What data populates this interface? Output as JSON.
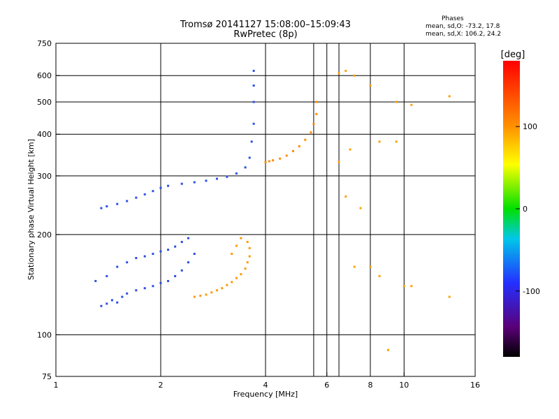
{
  "header": {
    "title_line1": "Tromsø 20141127 15:08:00–15:09:43",
    "title_line2": "RwPretec (8p)",
    "phases_title": "Phases",
    "phases_o": "mean, sd,O: -73.2, 17.8",
    "phases_x": "mean, sd,X: 106.2, 24.2"
  },
  "chart_data": {
    "type": "scatter",
    "xlabel": "Frequency [MHz]",
    "ylabel": "Stationary phase Virtual Height [km]",
    "x_scale": "log",
    "y_scale": "log",
    "xlim": [
      1,
      16
    ],
    "ylim": [
      75,
      750
    ],
    "x_ticks": [
      1,
      2,
      4,
      6,
      8,
      10,
      16
    ],
    "y_ticks": [
      75,
      100,
      200,
      300,
      400,
      500,
      600,
      750
    ],
    "x_grid": [
      2,
      4,
      5.5,
      6,
      6.5,
      8,
      10
    ],
    "y_grid": [
      100,
      200,
      300,
      400,
      500,
      600
    ],
    "colorbar": {
      "label": "[deg]",
      "range": [
        -180,
        180
      ],
      "ticks": [
        100,
        0,
        -100
      ],
      "colormap": "rainbow (black-purple-blue-cyan-green-yellow-orange-red)"
    },
    "series": [
      {
        "description": "O-mode E/F1 trace (blue, phase ≈ -100°)",
        "color": "#2b4fe0",
        "points": [
          [
            1.35,
            122
          ],
          [
            1.4,
            124
          ],
          [
            1.45,
            127
          ],
          [
            1.5,
            125
          ],
          [
            1.55,
            130
          ],
          [
            1.6,
            133
          ],
          [
            1.7,
            136
          ],
          [
            1.8,
            138
          ],
          [
            1.9,
            140
          ],
          [
            2.0,
            143
          ],
          [
            2.1,
            145
          ],
          [
            2.2,
            150
          ],
          [
            2.3,
            156
          ],
          [
            2.4,
            165
          ],
          [
            2.5,
            175
          ],
          [
            1.3,
            145
          ],
          [
            1.4,
            150
          ],
          [
            1.5,
            160
          ],
          [
            1.6,
            165
          ],
          [
            1.7,
            170
          ],
          [
            1.8,
            172
          ],
          [
            1.9,
            175
          ],
          [
            2.0,
            178
          ],
          [
            2.1,
            180
          ],
          [
            2.2,
            184
          ],
          [
            2.3,
            190
          ],
          [
            2.4,
            195
          ]
        ]
      },
      {
        "description": "E/F1 trace X-mode (orange/yellow, phase ≈ +100°)",
        "color": "#ff9a00",
        "points": [
          [
            2.5,
            130
          ],
          [
            2.6,
            131
          ],
          [
            2.7,
            132
          ],
          [
            2.8,
            134
          ],
          [
            2.9,
            136
          ],
          [
            3.0,
            138
          ],
          [
            3.1,
            141
          ],
          [
            3.2,
            144
          ],
          [
            3.3,
            148
          ],
          [
            3.4,
            152
          ],
          [
            3.5,
            158
          ],
          [
            3.55,
            165
          ],
          [
            3.6,
            172
          ],
          [
            3.6,
            182
          ],
          [
            3.55,
            190
          ],
          [
            3.4,
            195
          ],
          [
            3.3,
            185
          ],
          [
            3.2,
            175
          ]
        ]
      },
      {
        "description": "O-mode F2 trace (blue, phase ≈ -100°)",
        "color": "#2a50e5",
        "points": [
          [
            1.35,
            240
          ],
          [
            1.4,
            243
          ],
          [
            1.5,
            247
          ],
          [
            1.6,
            252
          ],
          [
            1.7,
            258
          ],
          [
            1.8,
            264
          ],
          [
            1.9,
            270
          ],
          [
            2.0,
            276
          ],
          [
            2.1,
            280
          ],
          [
            2.3,
            284
          ],
          [
            2.5,
            287
          ],
          [
            2.7,
            290
          ],
          [
            2.9,
            294
          ],
          [
            3.1,
            298
          ],
          [
            3.3,
            305
          ],
          [
            3.5,
            318
          ],
          [
            3.6,
            340
          ],
          [
            3.65,
            380
          ],
          [
            3.7,
            430
          ],
          [
            3.7,
            500
          ],
          [
            3.7,
            560
          ],
          [
            3.7,
            620
          ]
        ]
      },
      {
        "description": "X-mode F2 trace (orange, phase ≈ +100°)",
        "color": "#ff8c00",
        "points": [
          [
            4.0,
            330
          ],
          [
            4.1,
            332
          ],
          [
            4.2,
            334
          ],
          [
            4.4,
            338
          ],
          [
            4.6,
            345
          ],
          [
            4.8,
            356
          ],
          [
            5.0,
            368
          ],
          [
            5.2,
            385
          ],
          [
            5.4,
            405
          ],
          [
            5.5,
            430
          ],
          [
            5.6,
            460
          ],
          [
            5.6,
            500
          ]
        ]
      },
      {
        "description": "Scattered echoes (mixed colors)",
        "color": "#ffa000",
        "points": [
          [
            6.5,
            610
          ],
          [
            6.8,
            620
          ],
          [
            7.2,
            600
          ],
          [
            8.0,
            560
          ],
          [
            9.5,
            500
          ],
          [
            10.5,
            490
          ],
          [
            13.5,
            520
          ],
          [
            6.5,
            330
          ],
          [
            7.0,
            360
          ],
          [
            7.5,
            240
          ],
          [
            8.5,
            380
          ],
          [
            9.5,
            380
          ],
          [
            6.8,
            260
          ],
          [
            7.2,
            160
          ],
          [
            8.0,
            160
          ],
          [
            8.5,
            150
          ],
          [
            9.0,
            90
          ],
          [
            10.0,
            140
          ],
          [
            10.5,
            140
          ],
          [
            13.5,
            130
          ]
        ]
      }
    ]
  }
}
